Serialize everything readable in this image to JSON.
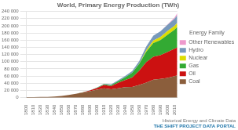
{
  "chart_data": {
    "type": "area",
    "title": "World, Primary Energy Production (TWh)",
    "legend_title": "Energy Family",
    "annotations": [
      "THE SHIFT PROJECT DATA PORTAL",
      "Historical Energy and Climate Data"
    ],
    "x": [
      1800,
      1810,
      1820,
      1830,
      1840,
      1850,
      1860,
      1870,
      1880,
      1890,
      1900,
      1910,
      1920,
      1930,
      1940,
      1950,
      1960,
      1970,
      1980,
      1990,
      2000,
      2010,
      2014
    ],
    "series": [
      {
        "name": "Coal",
        "color": "#8B5E3C",
        "values": [
          1200,
          1500,
          1800,
          2200,
          3200,
          4800,
          7500,
          10500,
          14000,
          18000,
          22000,
          26000,
          23000,
          26000,
          29000,
          30000,
          35000,
          42000,
          50000,
          52000,
          55000,
          60000,
          62000
        ]
      },
      {
        "name": "Oil",
        "color": "#CC1111",
        "values": [
          0,
          0,
          0,
          0,
          0,
          0,
          50,
          200,
          600,
          1800,
          4500,
          9000,
          9000,
          15000,
          20000,
          26000,
          40000,
          57000,
          64000,
          66000,
          72000,
          76000,
          78000
        ]
      },
      {
        "name": "Gas",
        "color": "#33AA33",
        "values": [
          0,
          0,
          0,
          0,
          0,
          0,
          0,
          50,
          200,
          400,
          900,
          2200,
          2800,
          4500,
          7500,
          13000,
          19000,
          29000,
          38000,
          42000,
          48000,
          53000,
          57000
        ]
      },
      {
        "name": "Nuclear",
        "color": "#DDDD00",
        "values": [
          0,
          0,
          0,
          0,
          0,
          0,
          0,
          0,
          0,
          0,
          0,
          0,
          0,
          0,
          0,
          0,
          400,
          3500,
          7000,
          9000,
          10000,
          11000,
          11000
        ]
      },
      {
        "name": "Hydro",
        "color": "#7799BB",
        "values": [
          0,
          0,
          0,
          0,
          0,
          0,
          0,
          0,
          100,
          300,
          700,
          1300,
          1900,
          2600,
          3600,
          5200,
          7500,
          11000,
          13500,
          15500,
          17500,
          19500,
          21500
        ]
      },
      {
        "name": "Other Renewables",
        "color": "#EE99CC",
        "values": [
          0,
          0,
          0,
          0,
          0,
          0,
          0,
          0,
          0,
          0,
          0,
          0,
          0,
          0,
          0,
          0,
          0,
          0,
          100,
          300,
          1000,
          3000,
          6000
        ]
      }
    ],
    "stacked": true,
    "xlim": [
      1800,
      2014
    ],
    "xticks": [
      1800,
      1810,
      1820,
      1830,
      1840,
      1850,
      1860,
      1870,
      1880,
      1890,
      1900,
      1910,
      1920,
      1930,
      1940,
      1950,
      1960,
      1970,
      1980,
      1990,
      2000,
      2010
    ],
    "ylim": [
      0,
      240000
    ],
    "yticks": [
      0,
      {
        "value": 20000,
        "label": "20 000"
      },
      {
        "value": 40000,
        "label": "40 000"
      },
      {
        "value": 60000,
        "label": "60 000"
      },
      {
        "value": 80000,
        "label": "80 000"
      },
      {
        "value": 100000,
        "label": "100 000"
      },
      {
        "value": 120000,
        "label": "120 000"
      },
      {
        "value": 140000,
        "label": "140 000"
      },
      {
        "value": 160000,
        "label": "160 000"
      },
      {
        "value": 180000,
        "label": "180 000"
      },
      {
        "value": 200000,
        "label": "200 000"
      },
      {
        "value": 220000,
        "label": "220 000"
      },
      {
        "value": 240000,
        "label": "240 000"
      }
    ],
    "grid": "y",
    "legend": "right"
  }
}
